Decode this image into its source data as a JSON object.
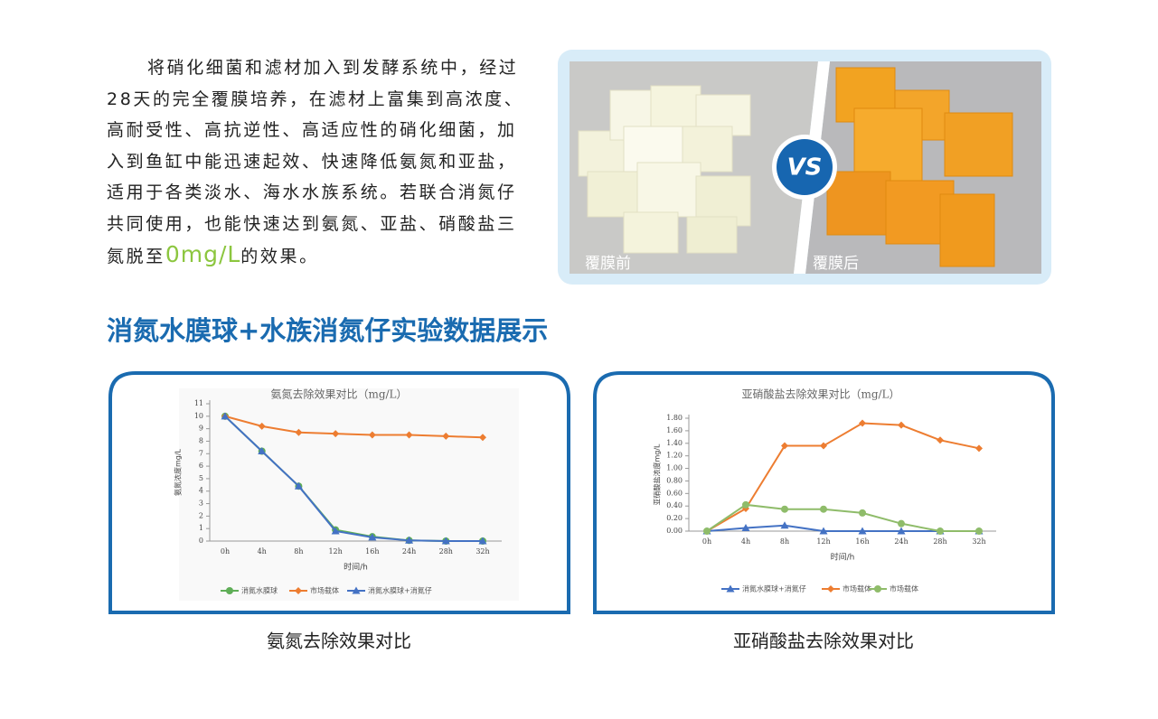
{
  "intro": {
    "text": "将硝化细菌和滤材加入到发酵系统中，经过28天的完全覆膜培养，在滤材上富集到高浓度、高耐受性、高抗逆性、高适应性的硝化细菌，加入到鱼缸中能迅速起效、快速降低氨氮和亚盐，适用于各类淡水、海水水族系统。若联合消氮仔共同使用，也能快速达到氨氮、亚盐、硝酸盐三氮脱至",
    "highlight": "0mg/L",
    "tail": "的效果。"
  },
  "photo": {
    "left_label": "覆膜前",
    "right_label": "覆膜后",
    "badge": "VS"
  },
  "section_title": "消氮水膜球+水族消氮仔实验数据展示",
  "chart_data": [
    {
      "type": "line",
      "title": "氨氮去除效果对比（mg/L）",
      "y_label": "氨氮浓度mg/L",
      "x_label": "时间/h",
      "categories": [
        "0h",
        "4h",
        "8h",
        "12h",
        "16h",
        "24h",
        "28h",
        "32h"
      ],
      "series": [
        {
          "name": "消氮水膜球",
          "color": "#5fae57",
          "values": [
            10,
            7.2,
            4.4,
            0.9,
            0.35,
            0.05,
            0,
            0
          ]
        },
        {
          "name": "市场载体",
          "color": "#ed7d31",
          "values": [
            10,
            9.2,
            8.7,
            8.6,
            8.5,
            8.5,
            8.4,
            8.3
          ]
        },
        {
          "name": "消氮水膜球+消氮仔",
          "color": "#4472c4",
          "values": [
            10,
            7.2,
            4.4,
            0.8,
            0.3,
            0.05,
            0,
            0
          ]
        }
      ],
      "ylim": [
        0,
        11
      ],
      "yticks": [
        0,
        1,
        2,
        3,
        4,
        5,
        6,
        7,
        8,
        9,
        10,
        11
      ]
    },
    {
      "type": "line",
      "title": "亚硝酸盐去除效果对比（mg/L）",
      "y_label": "亚硝酸盐浓度mg/L",
      "x_label": "时间/h",
      "categories": [
        "0h",
        "4h",
        "8h",
        "12h",
        "16h",
        "24h",
        "28h",
        "32h"
      ],
      "series": [
        {
          "name": "消氮水膜球+消氮仔",
          "color": "#4472c4",
          "values": [
            0,
            0.05,
            0.09,
            0,
            0,
            0,
            0,
            0
          ]
        },
        {
          "name": "市场载体",
          "color": "#ed7d31",
          "values": [
            0,
            0.36,
            1.36,
            1.36,
            1.72,
            1.69,
            1.45,
            1.32
          ]
        },
        {
          "name": "市场载体",
          "color": "#8fbc6a",
          "values": [
            0,
            0.42,
            0.35,
            0.35,
            0.29,
            0.12,
            0,
            0
          ]
        }
      ],
      "ylim": [
        0,
        1.8
      ],
      "yticks": [
        {
          "value": 0,
          "label": "0.00"
        },
        {
          "value": 0.2,
          "label": "0.20"
        },
        {
          "value": 0.4,
          "label": "0.40"
        },
        {
          "value": 0.6,
          "label": "0.60"
        },
        {
          "value": 0.8,
          "label": "0.80"
        },
        {
          "value": 1,
          "label": "1.00"
        },
        {
          "value": 1.2,
          "label": "1.20"
        },
        {
          "value": 1.4,
          "label": "1.40"
        },
        {
          "value": 1.6,
          "label": "1.60"
        },
        {
          "value": 1.8,
          "label": "1.80"
        }
      ]
    }
  ],
  "captions": [
    "氨氮去除效果对比",
    "亚硝酸盐去除效果对比"
  ]
}
